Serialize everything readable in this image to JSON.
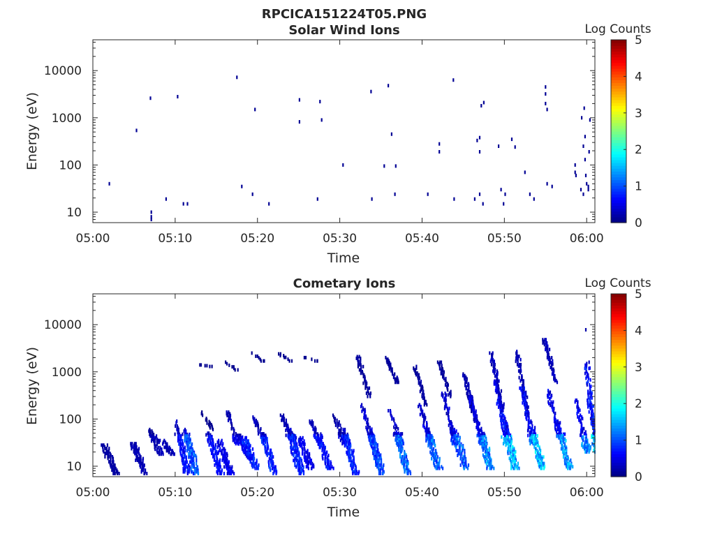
{
  "figure_title": "RPCICA151224T05.PNG",
  "chart_data": [
    {
      "type": "heatmap",
      "title": "Solar Wind Ions",
      "xlabel": "Time",
      "ylabel": "Energy (eV)",
      "x_tick_labels": [
        "05:00",
        "05:10",
        "05:20",
        "05:30",
        "05:40",
        "05:50",
        "06:00"
      ],
      "x_ticks_min": [
        0,
        10,
        20,
        30,
        40,
        50,
        60
      ],
      "xlim_min": [
        0,
        61
      ],
      "y_scale": "log",
      "y_tick_labels": [
        "10",
        "100",
        "1000",
        "10000"
      ],
      "y_ticks": [
        10,
        100,
        1000,
        10000
      ],
      "ylim": [
        6,
        45000
      ],
      "colorbar": {
        "label": "Log Counts",
        "ticks": [
          "0",
          "1",
          "2",
          "3",
          "4",
          "5"
        ],
        "range": [
          0,
          5
        ],
        "colormap": "jet"
      },
      "points": [
        [
          2.0,
          40,
          0.1
        ],
        [
          5.3,
          540,
          0.1
        ],
        [
          7.0,
          2600,
          0.1
        ],
        [
          7.1,
          8,
          0.1
        ],
        [
          7.1,
          10,
          0.1
        ],
        [
          7.1,
          7,
          0.1
        ],
        [
          8.9,
          19,
          0.1
        ],
        [
          10.3,
          2800,
          0.1
        ],
        [
          11.0,
          15,
          0.1
        ],
        [
          11.5,
          15,
          0.1
        ],
        [
          17.5,
          7200,
          0.1
        ],
        [
          18.1,
          35,
          0.1
        ],
        [
          19.4,
          24,
          0.1
        ],
        [
          19.7,
          1500,
          0.1
        ],
        [
          21.4,
          15,
          0.1
        ],
        [
          25.1,
          2400,
          0.1
        ],
        [
          25.1,
          820,
          0.1
        ],
        [
          27.3,
          19,
          0.1
        ],
        [
          27.6,
          2200,
          0.1
        ],
        [
          27.8,
          900,
          0.1
        ],
        [
          30.4,
          100,
          0.1
        ],
        [
          33.8,
          3600,
          0.1
        ],
        [
          33.9,
          19,
          0.1
        ],
        [
          35.4,
          95,
          0.1
        ],
        [
          35.9,
          4800,
          0.1
        ],
        [
          36.3,
          450,
          0.1
        ],
        [
          36.7,
          24,
          0.1
        ],
        [
          36.8,
          95,
          0.1
        ],
        [
          40.7,
          24,
          0.1
        ],
        [
          42.1,
          280,
          0.1
        ],
        [
          42.1,
          190,
          0.1
        ],
        [
          43.8,
          6300,
          0.1
        ],
        [
          43.9,
          19,
          0.1
        ],
        [
          46.4,
          19,
          0.1
        ],
        [
          46.7,
          330,
          0.1
        ],
        [
          47.0,
          24,
          0.1
        ],
        [
          47.0,
          380,
          0.1
        ],
        [
          47.0,
          190,
          0.1
        ],
        [
          47.2,
          1800,
          0.1
        ],
        [
          47.4,
          15,
          0.1
        ],
        [
          47.5,
          2100,
          0.1
        ],
        [
          49.3,
          250,
          0.1
        ],
        [
          49.6,
          30,
          0.1
        ],
        [
          49.9,
          15,
          0.1
        ],
        [
          50.1,
          24,
          0.1
        ],
        [
          50.9,
          350,
          0.1
        ],
        [
          51.3,
          240,
          0.1
        ],
        [
          52.5,
          70,
          0.1
        ],
        [
          53.1,
          24,
          0.1
        ],
        [
          53.6,
          19,
          0.1
        ],
        [
          55.0,
          4500,
          0.1
        ],
        [
          55.0,
          3200,
          0.1
        ],
        [
          55.0,
          2000,
          0.1
        ],
        [
          55.2,
          1500,
          0.1
        ],
        [
          55.2,
          40,
          0.1
        ],
        [
          55.8,
          35,
          0.1
        ],
        [
          58.6,
          100,
          0.1
        ],
        [
          58.6,
          70,
          0.1
        ],
        [
          58.7,
          60,
          0.1
        ],
        [
          59.3,
          30,
          0.1
        ],
        [
          59.4,
          1000,
          0.1
        ],
        [
          59.6,
          24,
          0.1
        ],
        [
          59.7,
          1600,
          0.1
        ],
        [
          59.8,
          400,
          0.1
        ],
        [
          59.6,
          250,
          0.1
        ],
        [
          59.8,
          130,
          0.1
        ],
        [
          59.9,
          60,
          0.1
        ],
        [
          60.0,
          40,
          0.1
        ],
        [
          60.2,
          35,
          0.1
        ],
        [
          60.4,
          900,
          0.1
        ],
        [
          60.3,
          190,
          0.1
        ],
        [
          60.2,
          30,
          0.1
        ]
      ]
    },
    {
      "type": "heatmap",
      "title": "Cometary Ions",
      "xlabel": "Time",
      "ylabel": "Energy (eV)",
      "x_tick_labels": [
        "05:00",
        "05:10",
        "05:20",
        "05:30",
        "05:40",
        "05:50",
        "06:00"
      ],
      "x_ticks_min": [
        0,
        10,
        20,
        30,
        40,
        50,
        60
      ],
      "xlim_min": [
        0,
        61
      ],
      "y_scale": "log",
      "y_tick_labels": [
        "10",
        "100",
        "1000",
        "10000"
      ],
      "y_ticks": [
        10,
        100,
        1000,
        10000
      ],
      "ylim": [
        6,
        45000
      ],
      "colorbar": {
        "label": "Log Counts",
        "ticks": [
          "0",
          "1",
          "2",
          "3",
          "4",
          "5"
        ],
        "range": [
          0,
          5
        ],
        "colormap": "jet"
      },
      "bursts": [
        {
          "t": 1.5,
          "e_max": 28,
          "peak": 0.2,
          "tail_to": 7
        },
        {
          "t": 5.0,
          "e_max": 30,
          "peak": 0.3,
          "tail_to": 7
        },
        {
          "t": 7.0,
          "e_max": 60,
          "peak": 0.3,
          "tail_to": 18
        },
        {
          "t": 8.4,
          "e_max": 35,
          "peak": 0.3,
          "tail_to": 18
        },
        {
          "t": 10.2,
          "e_max": 90,
          "peak": 0.8,
          "tail_to": 7
        },
        {
          "t": 11.3,
          "e_max": 60,
          "peak": 1.2,
          "tail_to": 7
        },
        {
          "t": 13.1,
          "e_max": 1400,
          "peak": 0.2,
          "tail_to": 1300
        },
        {
          "t": 13.3,
          "e_max": 140,
          "peak": 0.2,
          "tail_to": 60
        },
        {
          "t": 14.2,
          "e_max": 50,
          "peak": 0.8,
          "tail_to": 7
        },
        {
          "t": 15.4,
          "e_max": 35,
          "peak": 0.6,
          "tail_to": 7
        },
        {
          "t": 16.2,
          "e_max": 1600,
          "peak": 0.2,
          "tail_to": 1100
        },
        {
          "t": 16.4,
          "e_max": 140,
          "peak": 0.6,
          "tail_to": 30
        },
        {
          "t": 17.8,
          "e_max": 45,
          "peak": 0.6,
          "tail_to": 14
        },
        {
          "t": 18.5,
          "e_max": 40,
          "peak": 0.9,
          "tail_to": 9
        },
        {
          "t": 19.4,
          "e_max": 2500,
          "peak": 0.2,
          "tail_to": 1700
        },
        {
          "t": 19.6,
          "e_max": 110,
          "peak": 0.7,
          "tail_to": 35
        },
        {
          "t": 20.8,
          "e_max": 45,
          "peak": 0.9,
          "tail_to": 7
        },
        {
          "t": 22.7,
          "e_max": 2400,
          "peak": 0.2,
          "tail_to": 1700
        },
        {
          "t": 23.1,
          "e_max": 120,
          "peak": 0.7,
          "tail_to": 30
        },
        {
          "t": 24.0,
          "e_max": 60,
          "peak": 0.9,
          "tail_to": 7
        },
        {
          "t": 25.2,
          "e_max": 40,
          "peak": 0.6,
          "tail_to": 9
        },
        {
          "t": 25.9,
          "e_max": 2000,
          "peak": 0.2,
          "tail_to": 1700
        },
        {
          "t": 26.5,
          "e_max": 90,
          "peak": 0.7,
          "tail_to": 30
        },
        {
          "t": 27.5,
          "e_max": 40,
          "peak": 0.8,
          "tail_to": 9
        },
        {
          "t": 29.4,
          "e_max": 120,
          "peak": 0.6,
          "tail_to": 30
        },
        {
          "t": 30.6,
          "e_max": 60,
          "peak": 0.9,
          "tail_to": 7
        },
        {
          "t": 32.3,
          "e_max": 2100,
          "peak": 0.4,
          "tail_to": 300
        },
        {
          "t": 32.8,
          "e_max": 200,
          "peak": 1.0,
          "tail_to": 30
        },
        {
          "t": 33.8,
          "e_max": 50,
          "peak": 1.1,
          "tail_to": 7
        },
        {
          "t": 35.7,
          "e_max": 2000,
          "peak": 0.4,
          "tail_to": 600
        },
        {
          "t": 36.2,
          "e_max": 150,
          "peak": 1.0,
          "tail_to": 30
        },
        {
          "t": 37.0,
          "e_max": 50,
          "peak": 1.3,
          "tail_to": 7
        },
        {
          "t": 39.2,
          "e_max": 1300,
          "peak": 0.4,
          "tail_to": 200
        },
        {
          "t": 39.8,
          "e_max": 200,
          "peak": 1.1,
          "tail_to": 30
        },
        {
          "t": 40.7,
          "e_max": 60,
          "peak": 1.3,
          "tail_to": 9
        },
        {
          "t": 42.2,
          "e_max": 1600,
          "peak": 0.4,
          "tail_to": 300
        },
        {
          "t": 42.7,
          "e_max": 350,
          "peak": 1.0,
          "tail_to": 30
        },
        {
          "t": 44.0,
          "e_max": 60,
          "peak": 1.3,
          "tail_to": 9
        },
        {
          "t": 45.2,
          "e_max": 900,
          "peak": 0.6,
          "tail_to": 90
        },
        {
          "t": 46.0,
          "e_max": 300,
          "peak": 1.2,
          "tail_to": 30
        },
        {
          "t": 47.0,
          "e_max": 80,
          "peak": 1.5,
          "tail_to": 9
        },
        {
          "t": 48.5,
          "e_max": 2500,
          "peak": 0.8,
          "tail_to": 150
        },
        {
          "t": 49.0,
          "e_max": 600,
          "peak": 1.6,
          "tail_to": 30
        },
        {
          "t": 50.0,
          "e_max": 120,
          "peak": 1.7,
          "tail_to": 9
        },
        {
          "t": 51.6,
          "e_max": 2700,
          "peak": 0.7,
          "tail_to": 120
        },
        {
          "t": 52.2,
          "e_max": 450,
          "peak": 1.5,
          "tail_to": 30
        },
        {
          "t": 53.3,
          "e_max": 90,
          "peak": 1.8,
          "tail_to": 9
        },
        {
          "t": 55.0,
          "e_max": 4800,
          "peak": 0.7,
          "tail_to": 600
        },
        {
          "t": 55.4,
          "e_max": 400,
          "peak": 1.4,
          "tail_to": 40
        },
        {
          "t": 56.6,
          "e_max": 90,
          "peak": 1.6,
          "tail_to": 9
        },
        {
          "t": 58.8,
          "e_max": 250,
          "peak": 1.4,
          "tail_to": 20
        },
        {
          "t": 60.0,
          "e_max": 1500,
          "peak": 1.8,
          "tail_to": 20
        },
        {
          "t": 60.3,
          "e_max": 250,
          "peak": 1.9,
          "tail_to": 20
        }
      ],
      "points": [
        [
          59.9,
          7800,
          0.2
        ],
        [
          60.3,
          1600,
          0.3
        ],
        [
          60.4,
          1200,
          0.6
        ]
      ]
    }
  ]
}
